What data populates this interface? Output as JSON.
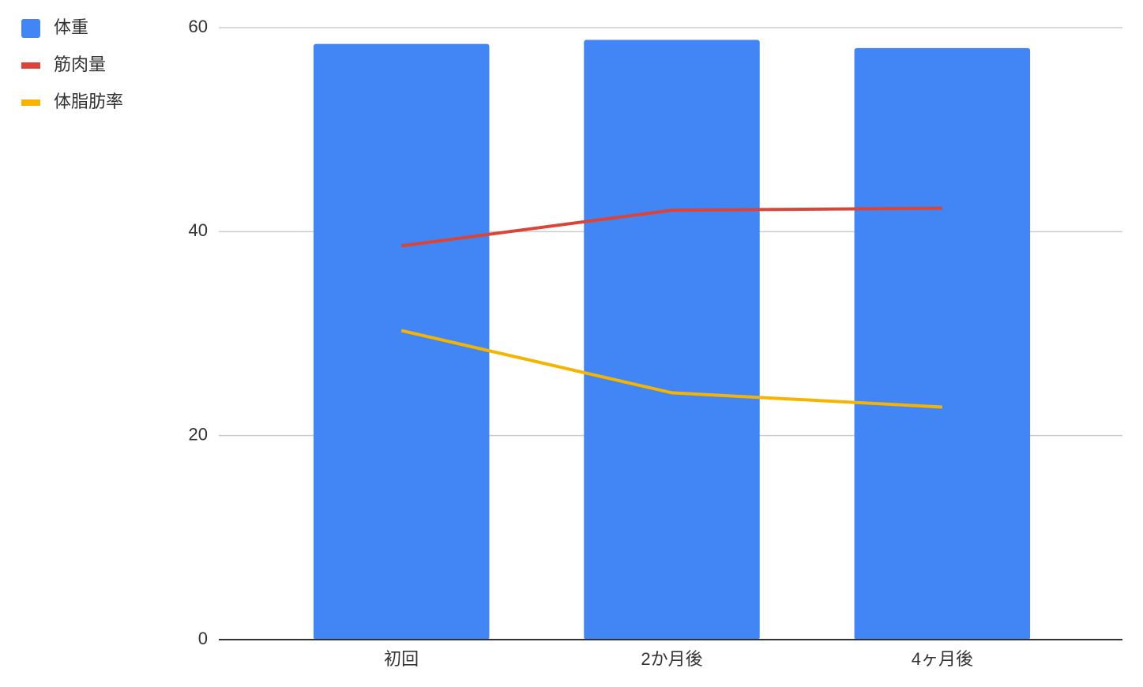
{
  "chart_data": {
    "type": "bar",
    "categories": [
      "初回",
      "2か月後",
      "4ヶ月後"
    ],
    "series": [
      {
        "name": "体重",
        "type": "bar",
        "color": "#4285f4",
        "values": [
          58.4,
          58.8,
          58.0
        ]
      },
      {
        "name": "筋肉量",
        "type": "line",
        "color": "#db4437",
        "values": [
          38.6,
          42.1,
          42.3
        ]
      },
      {
        "name": "体脂肪率",
        "type": "line",
        "color": "#f4b400",
        "values": [
          30.3,
          24.2,
          22.8
        ]
      }
    ],
    "ylim": [
      0,
      60
    ],
    "yticks": [
      0,
      20,
      40,
      60
    ],
    "grid": true,
    "legend": "top-left"
  }
}
